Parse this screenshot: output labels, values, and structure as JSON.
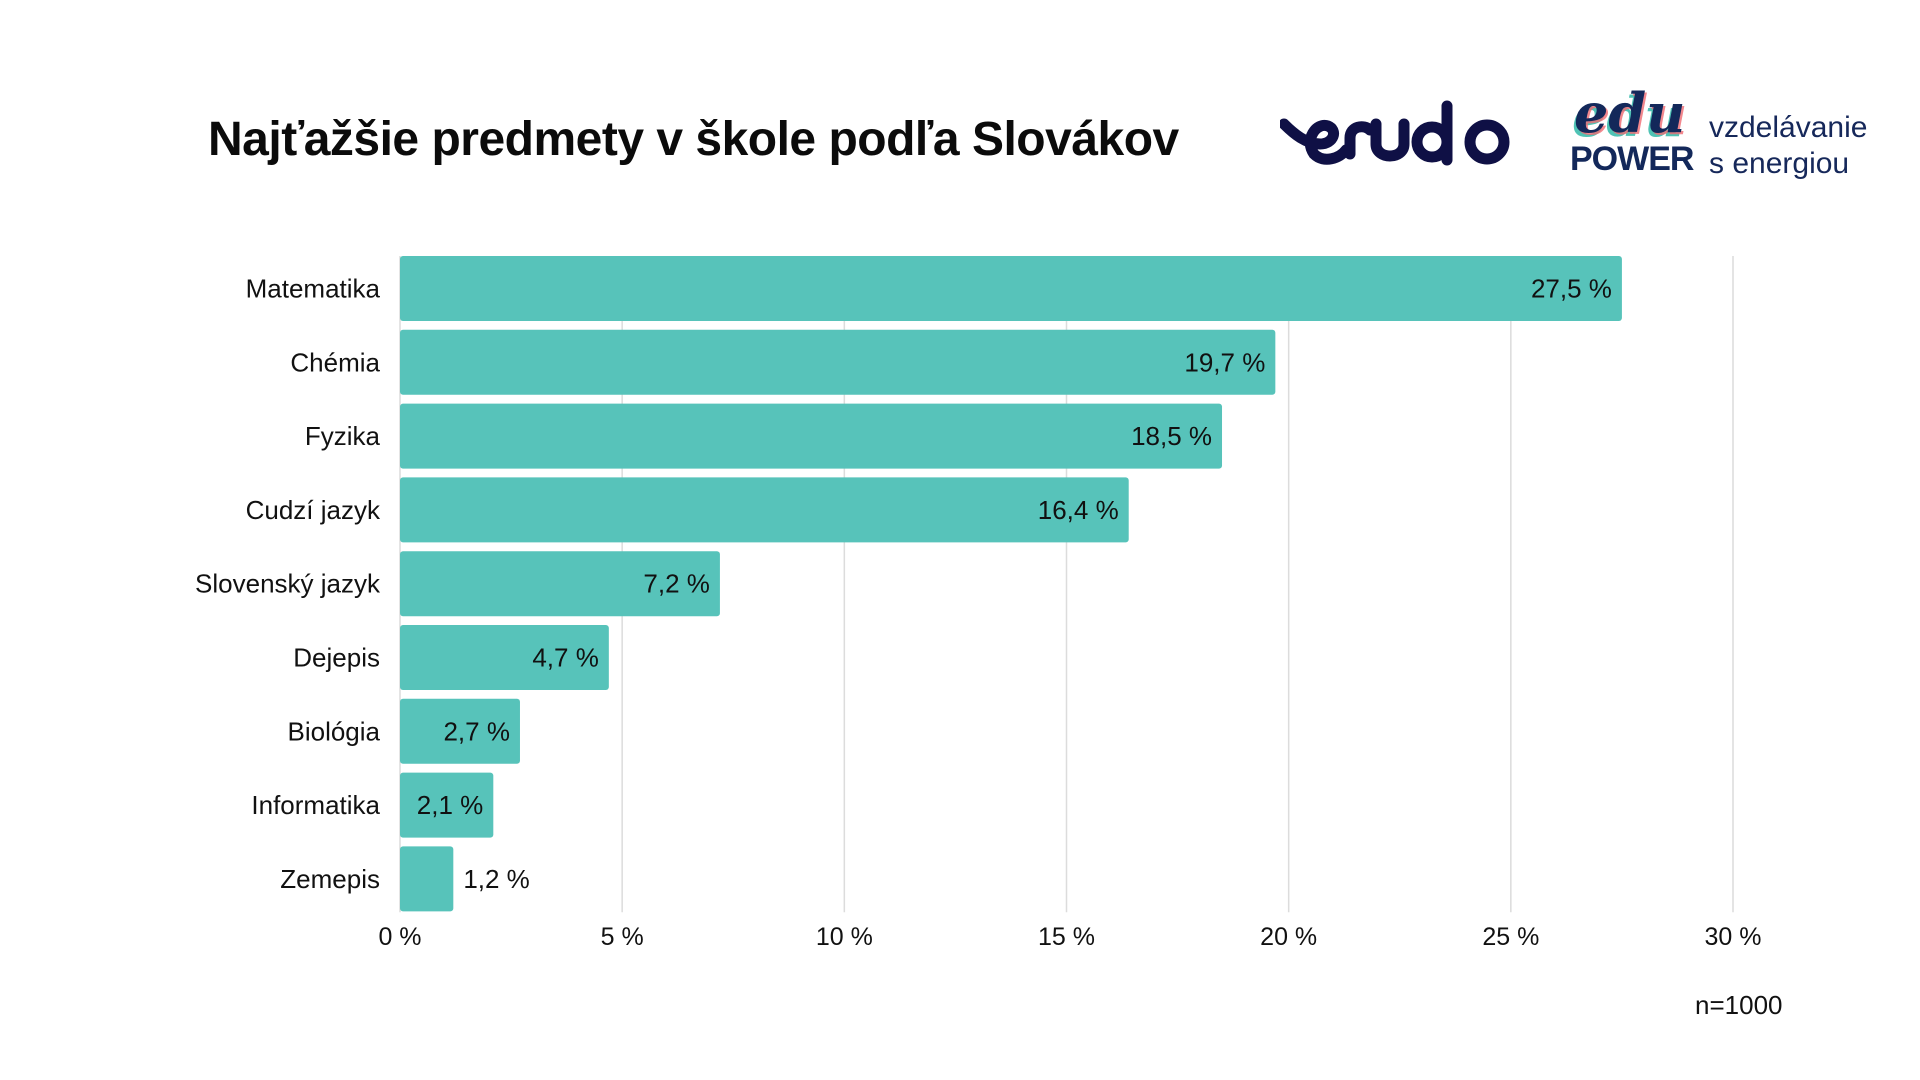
{
  "title": "Najťažšie predmety v škole podľa Slovákov",
  "logos": {
    "erudo": "erudo",
    "edupower": "edu POWER",
    "tagline_line1": "vzdelávanie",
    "tagline_line2": "s energiou"
  },
  "colors": {
    "bar": "#57C3BA",
    "grid": "#dcdcdc",
    "logo_navy": "#0f1045"
  },
  "sample_note": "n=1000",
  "chart_data": {
    "type": "bar",
    "orientation": "horizontal",
    "title": "Najťažšie predmety v škole podľa Slovákov",
    "categories": [
      "Matematika",
      "Chémia",
      "Fyzika",
      "Cudzí jazyk",
      "Slovenský jazyk",
      "Dejepis",
      "Biológia",
      "Informatika",
      "Zemepis"
    ],
    "values": [
      27.5,
      19.7,
      18.5,
      16.4,
      7.2,
      4.7,
      2.7,
      2.1,
      1.2
    ],
    "data_labels": [
      "27,5 %",
      "19,7 %",
      "18,5 %",
      "16,4 %",
      "7,2 %",
      "4,7 %",
      "2,7 %",
      "2,1 %",
      "1,2 %"
    ],
    "xlim": [
      0,
      30
    ],
    "xticks": [
      0,
      5,
      10,
      15,
      20,
      25,
      30
    ],
    "xtick_labels": [
      "0 %",
      "5 %",
      "10 %",
      "15 %",
      "20 %",
      "25 %",
      "30 %"
    ],
    "xlabel": "",
    "ylabel": "",
    "grid": "vertical",
    "legend": "none"
  }
}
